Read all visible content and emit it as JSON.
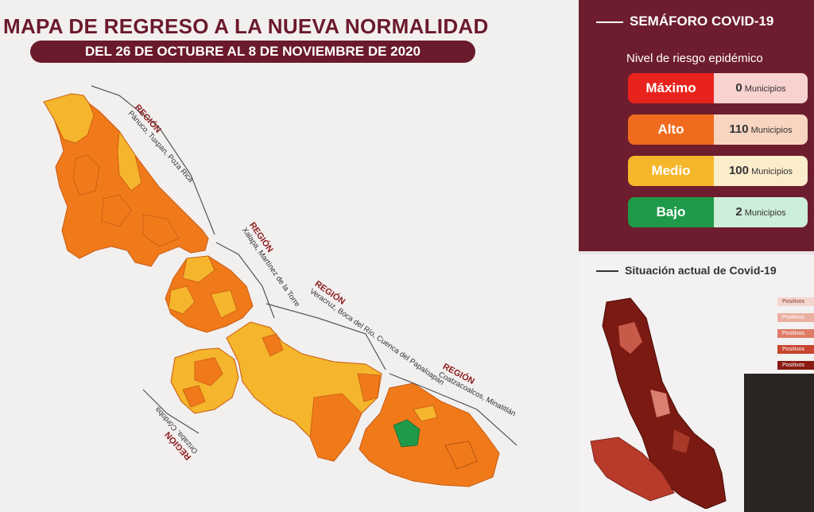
{
  "header": {
    "title": "MAPA DE REGRESO A LA NUEVA NORMALIDAD",
    "subtitle": "DEL 26 DE OCTUBRE AL 8 DE NOVIEMBRE DE 2020"
  },
  "regions": [
    {
      "label": "REGIÓN",
      "detail": "Pánuco, Tuxpan, Poza Rica"
    },
    {
      "label": "REGIÓN",
      "detail": "Xalapa, Martínez de la Torre"
    },
    {
      "label": "REGIÓN",
      "detail": "Veracruz, Boca del Río, Cuenca del Papaloapan"
    },
    {
      "label": "REGIÓN",
      "detail": "Coatzacoalcos, Minatitlán"
    },
    {
      "label": "REGIÓN",
      "detail": "Orizaba, Córdoba"
    }
  ],
  "semaforo": {
    "title": "SEMÁFORO COVID-19",
    "risk_label": "Nivel de riesgo epidémico",
    "levels": [
      {
        "name": "Máximo",
        "count": "0",
        "unit": "Municipios",
        "color": "#e8231d",
        "bg": "#f7d2cf"
      },
      {
        "name": "Alto",
        "count": "110",
        "unit": "Municipios",
        "color": "#f06b1d",
        "bg": "#f8d5c0"
      },
      {
        "name": "Medio",
        "count": "100",
        "unit": "Municipios",
        "color": "#f5b62a",
        "bg": "#fbeccc"
      },
      {
        "name": "Bajo",
        "count": "2",
        "unit": "Municipios",
        "color": "#1e9a4a",
        "bg": "#cdeed9"
      }
    ]
  },
  "situacion": {
    "title": "Situación actual de Covid-19",
    "legend": [
      "Positivos",
      "Positivos",
      "Positivos",
      "Positivos",
      "Positivos"
    ]
  },
  "colors": {
    "brand": "#6b1a2b",
    "alto": "#f07a1a",
    "medio": "#f5b52c",
    "bajo": "#1e9a4a"
  }
}
